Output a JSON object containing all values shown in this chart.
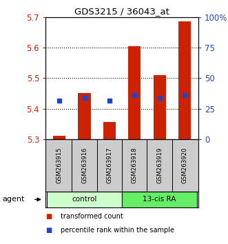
{
  "title": "GDS3215 / 36043_at",
  "samples": [
    "GSM263915",
    "GSM263916",
    "GSM263917",
    "GSM263918",
    "GSM263919",
    "GSM263920"
  ],
  "bar_bottoms": [
    5.3,
    5.3,
    5.3,
    5.3,
    5.3,
    5.3
  ],
  "bar_tops": [
    5.31,
    5.45,
    5.355,
    5.605,
    5.51,
    5.685
  ],
  "blue_dot_values": [
    5.425,
    5.435,
    5.425,
    5.445,
    5.435,
    5.445
  ],
  "ylim_left": [
    5.3,
    5.7
  ],
  "ylim_right": [
    0,
    100
  ],
  "yticks_left": [
    5.3,
    5.4,
    5.5,
    5.6,
    5.7
  ],
  "yticks_right": [
    0,
    25,
    50,
    75,
    100
  ],
  "yticklabels_right": [
    "0",
    "25",
    "50",
    "75",
    "100%"
  ],
  "group_labels": [
    "control",
    "13-cis RA"
  ],
  "group_colors_light": [
    "#ccffcc",
    "#66ee66"
  ],
  "group_ranges": [
    [
      0,
      3
    ],
    [
      3,
      6
    ]
  ],
  "bar_color": "#cc2200",
  "dot_color": "#2244cc",
  "bar_width": 0.5,
  "agent_label": "agent",
  "legend_items": [
    "transformed count",
    "percentile rank within the sample"
  ],
  "legend_colors": [
    "#cc2200",
    "#2244cc"
  ],
  "bg_color": "#ffffff",
  "plot_bg": "#ffffff",
  "label_color_left": "#cc2200",
  "label_color_right": "#2244cc",
  "sample_bg": "#cccccc"
}
